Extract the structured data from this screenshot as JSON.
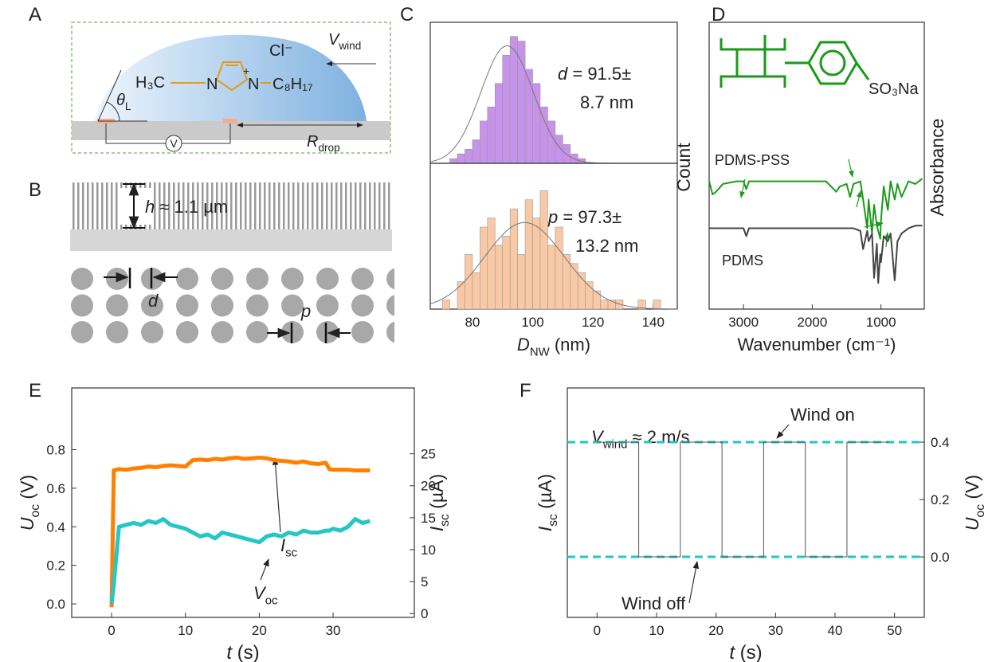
{
  "panel_labels": [
    "A",
    "B",
    "C",
    "D",
    "E",
    "F"
  ],
  "diagram_a": {
    "wind": {
      "var": "V",
      "sub": "wind"
    },
    "anion": "Cl⁻",
    "cation": {
      "methyl": "H₃C",
      "n1": "N",
      "charge": "+",
      "n2": "N",
      "chain": "C₈H₁₇"
    },
    "angle": {
      "var": "θ",
      "sub": "L"
    },
    "radius": {
      "var": "R",
      "sub": "drop"
    },
    "meter": "V"
  },
  "diagram_b": {
    "height": {
      "var": "h",
      "text": " ≈ 1.1 µm"
    },
    "diameter": "d",
    "pitch": "p"
  },
  "chart_data": [
    {
      "type": "histogram",
      "bins": [
        72.5,
        75,
        77.5,
        80,
        82.5,
        85,
        87.5,
        90,
        92.5,
        95,
        97.5,
        100,
        102.5,
        105,
        107.5,
        110,
        112.5,
        115,
        117.5
      ],
      "counts": [
        1,
        2,
        3,
        5,
        9,
        12,
        17,
        23,
        27,
        26,
        20,
        17,
        12,
        9,
        6,
        4,
        2,
        1
      ],
      "color": "#c792ea",
      "xlim": [
        66,
        148
      ],
      "ylim": [
        0,
        30
      ],
      "fit": {
        "mean": 91.5,
        "sd": 8.7,
        "peak": 25
      },
      "annotations": [
        {
          "var": "d",
          "text": " = 91.5±"
        },
        {
          "text": "8.7 nm"
        }
      ]
    },
    {
      "type": "histogram",
      "bins": [
        70,
        72.5,
        75,
        77.5,
        80,
        82.5,
        85,
        87.5,
        90,
        92.5,
        95,
        97.5,
        100,
        102.5,
        105,
        107.5,
        110,
        112.5,
        115,
        117.5,
        120,
        122.5,
        125,
        127.5,
        130,
        132.5,
        135,
        137.5,
        140,
        142.5
      ],
      "counts": [
        1,
        0,
        3,
        6,
        4,
        9,
        10,
        7,
        8,
        11,
        6,
        12,
        10,
        13,
        7,
        9,
        6,
        5,
        4,
        3,
        2,
        1,
        1,
        1,
        0,
        0,
        1,
        0,
        1
      ],
      "color": "#f9c9a6",
      "xlim": [
        66,
        148
      ],
      "ylim": [
        0,
        16
      ],
      "xticks": [
        80,
        100,
        120,
        140
      ],
      "xlabel": {
        "var": "D",
        "sub": "NW",
        "text": " (nm)"
      },
      "ylabel": "Count",
      "fit": {
        "mean": 97.3,
        "sd": 13.2,
        "peak": 9.5
      },
      "annotations": [
        {
          "var": "p",
          "text": " = 97.3±"
        },
        {
          "text": "13.2 nm"
        }
      ]
    },
    {
      "type": "spectrum",
      "x": [
        3500,
        3450,
        3400,
        3300,
        3100,
        3000,
        2960,
        2920,
        2800,
        2400,
        2000,
        1800,
        1650,
        1600,
        1500,
        1450,
        1400,
        1300,
        1260,
        1200,
        1180,
        1130,
        1100,
        1060,
        1040,
        1010,
        1000,
        960,
        900,
        860,
        800,
        760,
        700,
        600,
        500,
        400
      ],
      "series": [
        {
          "name": "PDMS-PSS",
          "color": "#1a9a1a",
          "values": [
            4.9,
            4.4,
            4.5,
            4.8,
            4.9,
            4.9,
            4.6,
            4.9,
            4.9,
            4.9,
            4.9,
            4.9,
            4.5,
            4.7,
            4.8,
            4.3,
            4.8,
            4.9,
            4.2,
            3.1,
            4.2,
            2.9,
            4.0,
            3.2,
            3.0,
            2.7,
            3.4,
            4.7,
            3.8,
            4.9,
            4.2,
            4.8,
            4.3,
            4.9,
            4.8,
            5.0
          ]
        },
        {
          "name": "PDMS",
          "color": "#444444",
          "values": [
            3.1,
            3.1,
            3.1,
            3.1,
            3.1,
            3.1,
            2.8,
            3.1,
            3.1,
            3.1,
            3.1,
            3.1,
            3.1,
            3.1,
            3.1,
            3.1,
            3.1,
            3.0,
            2.3,
            3.0,
            2.6,
            2.9,
            1.2,
            2.5,
            1.0,
            2.1,
            1.8,
            2.8,
            2.6,
            2.9,
            1.1,
            2.6,
            2.9,
            3.1,
            3.2,
            3.2
          ]
        }
      ],
      "xlim": [
        3500,
        370
      ],
      "ylim": [
        0,
        11
      ],
      "xticks": [
        3000,
        2000,
        1000
      ],
      "xlabel": "Wavenumber (cm⁻¹)",
      "ylabel": "Absorbance",
      "structure_label": "SO₃Na"
    },
    {
      "type": "line",
      "x": [
        0,
        0.3,
        1,
        2,
        3,
        4,
        5,
        6,
        7,
        8,
        9,
        10,
        11,
        12,
        13,
        14,
        15,
        16,
        17,
        18,
        19,
        20,
        21,
        22,
        23,
        24,
        25,
        26,
        27,
        28,
        29,
        29.5,
        30,
        31,
        32,
        33,
        34,
        35
      ],
      "series": [
        {
          "color": "#ff8000",
          "axis": "y2",
          "values": [
            1,
            22.4,
            22.6,
            22.5,
            22.7,
            22.8,
            23.0,
            22.9,
            23.1,
            23.2,
            23.1,
            23.0,
            24.0,
            24.1,
            24.0,
            24.2,
            24.1,
            24.3,
            24.4,
            24.2,
            24.3,
            24.4,
            24.3,
            24.0,
            23.9,
            23.8,
            23.6,
            23.8,
            23.5,
            23.4,
            23.6,
            22.6,
            22.5,
            22.5,
            22.5,
            22.4,
            22.4,
            22.4
          ]
        },
        {
          "color": "#25c6c6",
          "axis": "y",
          "values": [
            0,
            0.1,
            0.4,
            0.41,
            0.42,
            0.41,
            0.43,
            0.42,
            0.44,
            0.41,
            0.4,
            0.39,
            0.37,
            0.35,
            0.36,
            0.34,
            0.37,
            0.36,
            0.35,
            0.34,
            0.33,
            0.32,
            0.35,
            0.36,
            0.35,
            0.37,
            0.36,
            0.38,
            0.37,
            0.37,
            0.38,
            0.38,
            0.39,
            0.38,
            0.4,
            0.44,
            0.42,
            0.43
          ]
        }
      ],
      "xlim": [
        -5.4,
        41
      ],
      "xticks": [
        0,
        10,
        20,
        30
      ],
      "ylim": [
        -0.07,
        1.12
      ],
      "yticks": [
        {
          "value": 0,
          "label": "0.0"
        },
        0.2,
        0.4,
        0.6,
        0.8
      ],
      "y2lim": [
        -0.6,
        35.3
      ],
      "y2ticks": [
        0,
        5,
        10,
        15,
        20,
        25
      ],
      "xlabel": {
        "var": "t",
        "text": " (s)"
      },
      "ylabel": {
        "var": "U",
        "sub": "oc",
        "text": " (V)"
      },
      "y2label": {
        "var": "I",
        "sub": "sc",
        "text": " (µA)"
      },
      "annotations": [
        {
          "var": "I",
          "sub": "sc"
        },
        {
          "var": "V",
          "sub": "oc"
        }
      ]
    },
    {
      "type": "step",
      "x": [
        0,
        7,
        7,
        14,
        14,
        21,
        21,
        28,
        28,
        35,
        35,
        42,
        42,
        49
      ],
      "series": [
        {
          "color": "#555555",
          "axis": "y2",
          "values": [
            0.4,
            0.4,
            0,
            0,
            0.4,
            0.4,
            0,
            0,
            0.4,
            0.4,
            0,
            0,
            0.4,
            0.4
          ]
        }
      ],
      "reference_lines": {
        "values": [
          0.4,
          0
        ],
        "color": "#25c6c6"
      },
      "xlim": [
        -5,
        55
      ],
      "xticks": [
        0,
        10,
        20,
        30,
        40,
        50
      ],
      "y2lim": [
        -0.211,
        0.589
      ],
      "y2ticks": [
        {
          "value": 0,
          "label": "0.0"
        },
        0.2,
        0.4
      ],
      "xlabel": {
        "var": "t",
        "text": " (s)"
      },
      "ylabel": {
        "var": "I",
        "sub": "sc",
        "text": " (µA)"
      },
      "y2label": {
        "var": "U",
        "sub": "oc",
        "text": " (V)"
      },
      "annotations": [
        {
          "var": "V",
          "sub": "wind",
          "text": " ≈ 2 m/s"
        },
        {
          "text": "Wind on"
        },
        {
          "text": "Wind off"
        }
      ]
    }
  ]
}
